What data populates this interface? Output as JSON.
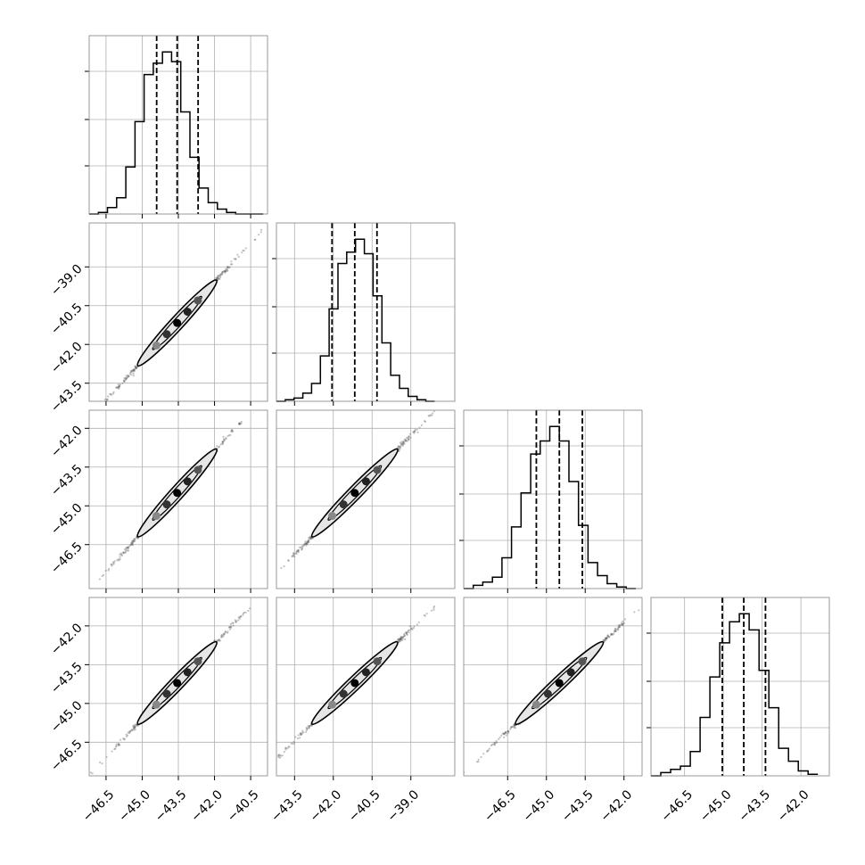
{
  "chart_data": {
    "type": "corner",
    "parameters": [
      "",
      "",
      "",
      ""
    ],
    "grid": true,
    "marginals": [
      {
        "param": 0,
        "range": [
          -47.2,
          -39.8
        ],
        "bin_edges": [
          -47.2,
          -46.82,
          -46.44,
          -46.06,
          -45.68,
          -45.3,
          -44.92,
          -44.54,
          -44.16,
          -43.78,
          -43.4,
          -43.02,
          -42.64,
          -42.26,
          -41.88,
          -41.5,
          -41.12,
          -40.74,
          -40.36,
          -39.98
        ],
        "counts": [
          0,
          1,
          4,
          10,
          29,
          57,
          86,
          93,
          100,
          94,
          63,
          35,
          16,
          7,
          3,
          1,
          0,
          0,
          0
        ],
        "quantiles": [
          -44.4,
          -43.55,
          -42.68
        ]
      },
      {
        "param": 1,
        "range": [
          -44.2,
          -37.3
        ],
        "bin_edges": [
          -44.2,
          -43.86,
          -43.52,
          -43.18,
          -42.84,
          -42.5,
          -42.16,
          -41.82,
          -41.48,
          -41.14,
          -40.8,
          -40.46,
          -40.12,
          -39.78,
          -39.44,
          -39.1,
          -38.76,
          -38.42,
          -38.08
        ],
        "counts": [
          0,
          1,
          2,
          5,
          11,
          28,
          57,
          85,
          92,
          100,
          91,
          65,
          36,
          16,
          8,
          3,
          1,
          0
        ],
        "quantiles": [
          -42.05,
          -41.17,
          -40.31
        ]
      },
      {
        "param": 2,
        "range": [
          -48.2,
          -41.3
        ],
        "bin_edges": [
          -48.2,
          -47.83,
          -47.46,
          -47.09,
          -46.72,
          -46.35,
          -45.98,
          -45.61,
          -45.24,
          -44.87,
          -44.5,
          -44.13,
          -43.76,
          -43.39,
          -43.02,
          -42.65,
          -42.28,
          -41.91,
          -41.54
        ],
        "counts": [
          0,
          2,
          4,
          7,
          19,
          38,
          59,
          83,
          91,
          100,
          91,
          66,
          39,
          16,
          8,
          3,
          1,
          0
        ],
        "quantiles": [
          -45.39,
          -44.5,
          -43.61
        ]
      },
      {
        "param": 3,
        "range": [
          -47.8,
          -40.9
        ],
        "bin_edges": [
          -47.8,
          -47.42,
          -47.04,
          -46.66,
          -46.28,
          -45.9,
          -45.52,
          -45.14,
          -44.76,
          -44.38,
          -44.0,
          -43.62,
          -43.24,
          -42.86,
          -42.48,
          -42.1,
          -41.72,
          -41.34
        ],
        "counts": [
          0,
          2,
          4,
          6,
          15,
          36,
          61,
          82,
          95,
          100,
          90,
          65,
          42,
          17,
          9,
          3,
          1
        ],
        "quantiles": [
          -45.04,
          -44.21,
          -43.37
        ]
      }
    ],
    "pairs": [
      {
        "row": 1,
        "col": 0,
        "x_range": [
          -47.2,
          -39.8
        ],
        "y_range": [
          -44.2,
          -37.3
        ]
      },
      {
        "row": 2,
        "col": 0,
        "x_range": [
          -47.2,
          -39.8
        ],
        "y_range": [
          -48.2,
          -41.3
        ]
      },
      {
        "row": 2,
        "col": 1,
        "x_range": [
          -44.2,
          -37.3
        ],
        "y_range": [
          -48.2,
          -41.3
        ]
      },
      {
        "row": 3,
        "col": 0,
        "x_range": [
          -47.2,
          -39.8
        ],
        "y_range": [
          -47.8,
          -40.9
        ]
      },
      {
        "row": 3,
        "col": 1,
        "x_range": [
          -44.2,
          -37.3
        ],
        "y_range": [
          -47.8,
          -40.9
        ]
      },
      {
        "row": 3,
        "col": 2,
        "x_range": [
          -48.2,
          -41.3
        ],
        "y_range": [
          -47.8,
          -40.9
        ]
      }
    ],
    "x_tick_labels": [
      [
        "−46.5",
        "−45.0",
        "−43.5",
        "−42.0",
        "−40.5"
      ],
      [
        "−43.5",
        "−42.0",
        "−40.5",
        "−39.0"
      ],
      [
        "−46.5",
        "−45.0",
        "−43.5",
        "−42.0"
      ],
      [
        "−46.5",
        "−45.0",
        "−43.5",
        "−42.0"
      ]
    ],
    "y_tick_labels": [
      [],
      [
        "−39.0",
        "−40.5",
        "−42.0",
        "−43.5"
      ],
      [
        "−42.0",
        "−43.5",
        "−45.0",
        "−46.5"
      ],
      [
        "−42.0",
        "−43.5",
        "−45.0",
        "−46.5"
      ]
    ],
    "x_tick_values": [
      [
        -46.5,
        -45.0,
        -43.5,
        -42.0,
        -40.5
      ],
      [
        -43.5,
        -42.0,
        -40.5,
        -39.0
      ],
      [
        -46.5,
        -45.0,
        -43.5,
        -42.0
      ],
      [
        -46.5,
        -45.0,
        -43.5,
        -42.0
      ]
    ],
    "y_tick_values": [
      [],
      [
        -39.0,
        -40.5,
        -42.0,
        -43.5
      ],
      [
        -42.0,
        -43.5,
        -45.0,
        -46.5
      ],
      [
        -42.0,
        -43.5,
        -45.0,
        -46.5
      ]
    ],
    "colors": {
      "line": "#000000",
      "grid": "#b0b0b0",
      "frame": "#808080",
      "points": "#555555",
      "contour_fill": "#e6e6e6"
    }
  }
}
